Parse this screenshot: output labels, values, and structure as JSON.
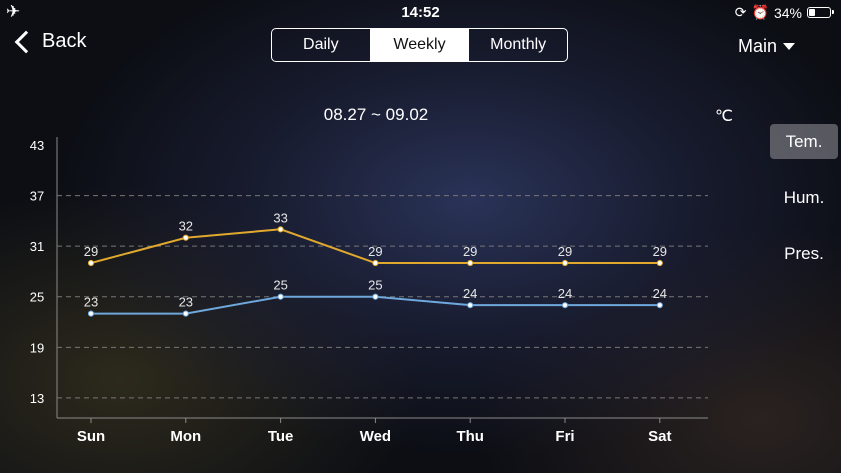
{
  "status": {
    "time": "14:52",
    "battery": "34%",
    "battery_level": 0.34
  },
  "nav": {
    "back_label": "Back",
    "tabs": [
      {
        "label": "Daily",
        "active": false
      },
      {
        "label": "Weekly",
        "active": true
      },
      {
        "label": "Monthly",
        "active": false
      }
    ],
    "menu_label": "Main"
  },
  "chart": {
    "range_label": "08.27 ~ 09.02",
    "unit": "℃"
  },
  "side_tabs": [
    {
      "label": "Tem.",
      "active": true
    },
    {
      "label": "Hum.",
      "active": false
    },
    {
      "label": "Pres.",
      "active": false
    }
  ],
  "chart_data": {
    "type": "line",
    "categories": [
      "Sun",
      "Mon",
      "Tue",
      "Wed",
      "Thu",
      "Fri",
      "Sat"
    ],
    "series": [
      {
        "values": [
          29,
          32,
          33,
          29,
          29,
          29,
          29
        ],
        "color": "#e0a92e"
      },
      {
        "values": [
          23,
          23,
          25,
          25,
          24,
          24,
          24
        ],
        "color": "#6fa8dc"
      }
    ],
    "yticks": [
      13,
      19,
      25,
      31,
      37,
      43
    ],
    "ylim": [
      10,
      43
    ],
    "grid": true
  }
}
